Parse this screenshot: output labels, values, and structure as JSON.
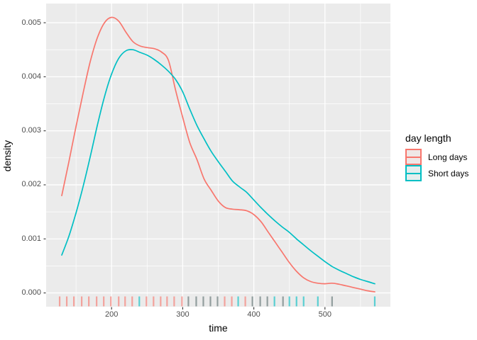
{
  "figure": {
    "background": "#FFFFFF",
    "panel_background": "#EBEBEB",
    "grid_color": "#FFFFFF",
    "tick_text_color": "#4D4D4D",
    "axis_title_color": "#000000",
    "tick_mark_color": "#333333"
  },
  "legend": {
    "title": "day length",
    "items": [
      {
        "label": "Long days",
        "color": "#F8766D",
        "key_fill": "#EFE7E6"
      },
      {
        "label": "Short days",
        "color": "#00BFC4",
        "key_fill": "#E4EEEE"
      }
    ]
  },
  "chart_data": {
    "type": "line",
    "subtype": "kernel-density",
    "title": "",
    "xlabel": "time",
    "ylabel": "density",
    "x_domain": [
      108,
      592
    ],
    "y_domain": [
      -0.000255,
      0.005355
    ],
    "x_major_ticks": [
      200,
      300,
      400,
      500
    ],
    "x_tick_labels": [
      "200",
      "300",
      "400",
      "500"
    ],
    "x_minor_gridlines": [
      150,
      250,
      350,
      450,
      550
    ],
    "y_major_ticks": [
      0,
      0.001,
      0.002,
      0.003,
      0.004,
      0.005
    ],
    "y_tick_labels": [
      "0.000",
      "0.001",
      "0.002",
      "0.003",
      "0.004",
      "0.005"
    ],
    "y_minor_gridlines": [
      0.0005,
      0.0015,
      0.0025,
      0.0035,
      0.0045
    ],
    "grid": true,
    "legend_position": "right",
    "series": [
      {
        "name": "Long days",
        "color": "#F8766D",
        "x": [
          130,
          140,
          150,
          160,
          170,
          180,
          190,
          200,
          210,
          220,
          230,
          240,
          250,
          260,
          270,
          280,
          290,
          300,
          310,
          320,
          330,
          340,
          350,
          360,
          370,
          380,
          390,
          400,
          410,
          420,
          430,
          440,
          450,
          460,
          470,
          480,
          490,
          500,
          510,
          520,
          530,
          540,
          550,
          560,
          570
        ],
        "values": [
          0.0018,
          0.00243,
          0.00308,
          0.0037,
          0.00428,
          0.00472,
          0.005,
          0.0051,
          0.00503,
          0.00483,
          0.00465,
          0.00457,
          0.00454,
          0.00452,
          0.00446,
          0.0043,
          0.00375,
          0.00325,
          0.00278,
          0.00247,
          0.00211,
          0.0019,
          0.0017,
          0.00158,
          0.00155,
          0.00154,
          0.00152,
          0.00145,
          0.00132,
          0.00113,
          0.00094,
          0.00075,
          0.00056,
          0.0004,
          0.00028,
          0.00021,
          0.00018,
          0.00017,
          0.00018,
          0.00016,
          0.00013,
          0.0001,
          7e-05,
          4e-05,
          2e-05
        ]
      },
      {
        "name": "Short days",
        "color": "#00BFC4",
        "x": [
          130,
          140,
          150,
          160,
          170,
          180,
          190,
          200,
          210,
          220,
          230,
          240,
          250,
          260,
          270,
          280,
          290,
          300,
          310,
          320,
          330,
          340,
          350,
          360,
          370,
          380,
          390,
          400,
          410,
          420,
          430,
          440,
          450,
          460,
          470,
          480,
          490,
          500,
          510,
          520,
          530,
          540,
          550,
          560,
          570
        ],
        "values": [
          0.0007,
          0.00105,
          0.00148,
          0.00197,
          0.00252,
          0.0031,
          0.00363,
          0.00405,
          0.00434,
          0.00448,
          0.0045,
          0.00445,
          0.0044,
          0.00432,
          0.00422,
          0.0041,
          0.00395,
          0.00372,
          0.0034,
          0.0031,
          0.00285,
          0.00262,
          0.00243,
          0.00225,
          0.00207,
          0.00196,
          0.00186,
          0.00172,
          0.00158,
          0.00145,
          0.00133,
          0.00122,
          0.00112,
          0.001,
          0.00089,
          0.00078,
          0.00068,
          0.00058,
          0.00049,
          0.00042,
          0.00036,
          0.0003,
          0.00025,
          0.00021,
          0.00017
        ]
      }
    ],
    "rug": {
      "colors": {
        "long": "#F8766D",
        "short": "#00BFC4",
        "both": "#8E9A9A"
      },
      "t": [
        127,
        137,
        147,
        158,
        168,
        179,
        189,
        199,
        210,
        219,
        229,
        239,
        249,
        259,
        269,
        278,
        288,
        299,
        308,
        319,
        329,
        339,
        349,
        359,
        369,
        378,
        388,
        398,
        409,
        419,
        429,
        441,
        450,
        460,
        470,
        490,
        510,
        570
      ],
      "g": [
        "long",
        "long",
        "long",
        "long",
        "long",
        "long",
        "long",
        "long",
        "long",
        "long",
        "long",
        "short",
        "long",
        "long",
        "long",
        "long",
        "long",
        "long",
        "both",
        "both",
        "both",
        "both",
        "both",
        "long",
        "long",
        "short",
        "long",
        "both",
        "both",
        "both",
        "short",
        "both",
        "short",
        "short",
        "short",
        "short",
        "both",
        "short"
      ]
    }
  }
}
